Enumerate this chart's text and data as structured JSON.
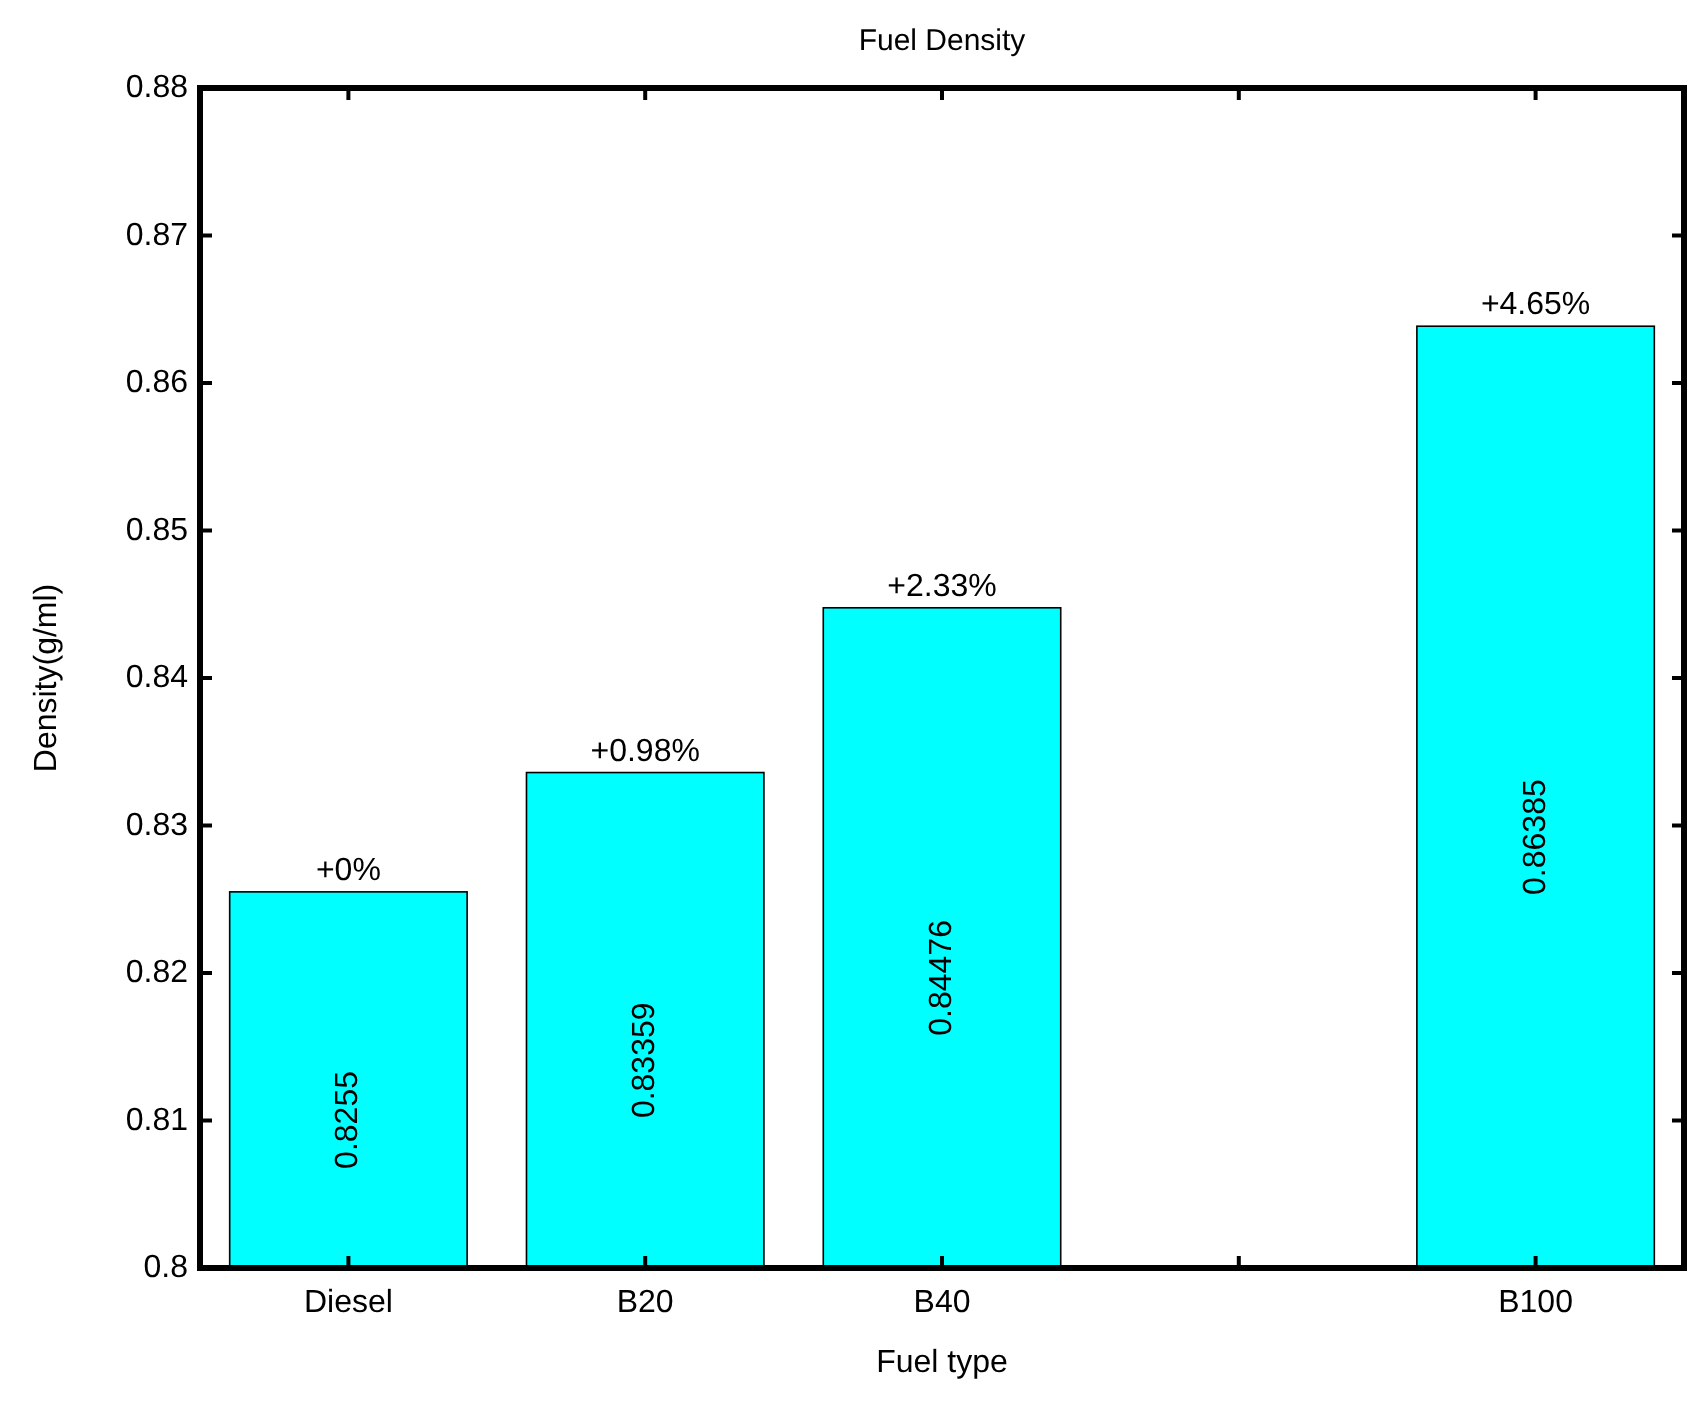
{
  "chart_data": {
    "type": "bar",
    "title": "Fuel Density",
    "xlabel": "Fuel type",
    "ylabel": "Density(g/ml)",
    "categories": [
      "Diesel",
      "B20",
      "B40",
      null,
      "B100"
    ],
    "values": [
      0.8255,
      0.83359,
      0.84476,
      null,
      0.86385
    ],
    "color": "#00ffff",
    "data_labels": true,
    "ylim": [
      0.8,
      0.88
    ],
    "yticks": [
      0.8,
      0.81,
      0.82,
      0.83,
      0.84,
      0.85,
      0.86,
      0.87,
      0.88
    ],
    "annotations": [
      {
        "text": "+0%",
        "x": "Diesel",
        "y": 0.8255
      },
      {
        "text": "+0.98%",
        "x": "B20",
        "y": 0.83359
      },
      {
        "text": "+2.33%",
        "x": "B40",
        "y": 0.84476
      },
      {
        "text": "+4.65%",
        "x": "B100",
        "y": 0.86385
      }
    ]
  }
}
